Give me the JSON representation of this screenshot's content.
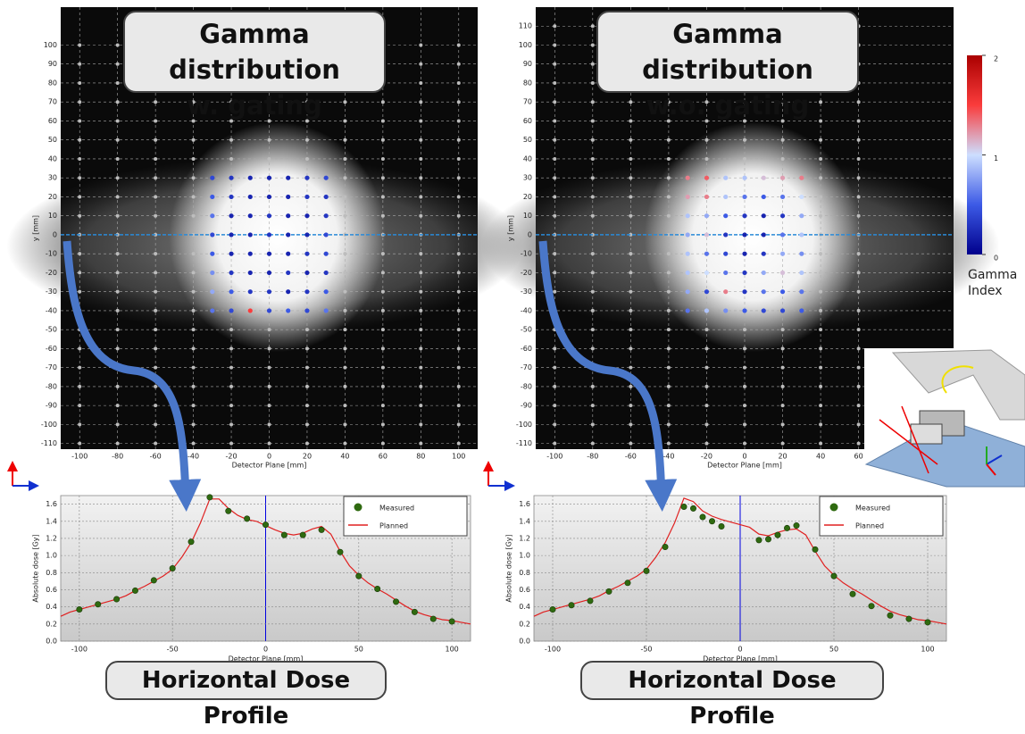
{
  "chart_data": [
    {
      "type": "gamma-map",
      "title": "Gamma distribution",
      "subtitle": "w. gating",
      "x_label": "Detector Plane [mm]",
      "y_label": "y [mm]",
      "xlim": [
        -110,
        110
      ],
      "ylim": [
        -113,
        120
      ],
      "xticks": [
        -100,
        -80,
        -60,
        -40,
        -20,
        0,
        20,
        40,
        60,
        80,
        100
      ],
      "yticks": [
        -110,
        -100,
        -90,
        -80,
        -70,
        -60,
        -50,
        -40,
        -30,
        -20,
        -10,
        0,
        10,
        20,
        30,
        40,
        50,
        60,
        70,
        80,
        90,
        100
      ],
      "x": [
        -30,
        -20,
        -10,
        0,
        10,
        20,
        30
      ],
      "y": [
        30,
        20,
        10,
        0,
        -10,
        -20,
        -30,
        -40
      ],
      "values": [
        [
          0.4,
          0.3,
          0.2,
          0.2,
          0.2,
          0.3,
          0.4
        ],
        [
          0.5,
          0.3,
          0.2,
          0.2,
          0.2,
          0.3,
          0.3
        ],
        [
          0.6,
          0.2,
          0.2,
          0.3,
          0.2,
          0.2,
          0.3
        ],
        [
          0.4,
          0.2,
          0.2,
          0.3,
          0.2,
          0.2,
          0.4
        ],
        [
          0.5,
          0.2,
          0.2,
          0.2,
          0.2,
          0.3,
          0.4
        ],
        [
          0.7,
          0.3,
          0.2,
          0.2,
          0.3,
          0.2,
          0.3
        ],
        [
          0.8,
          0.5,
          0.3,
          0.3,
          0.2,
          0.3,
          0.5
        ],
        [
          0.6,
          0.4,
          1.5,
          0.4,
          0.5,
          0.4,
          0.6
        ]
      ],
      "grid": true
    },
    {
      "type": "gamma-map",
      "title": "Gamma distribution",
      "subtitle": "w.o. gating",
      "x_label": "Detector Plane [mm]",
      "y_label": "y [mm]",
      "xlim": [
        -110,
        110
      ],
      "ylim": [
        -113,
        120
      ],
      "xticks": [
        -100,
        -80,
        -60,
        -40,
        -20,
        0,
        20,
        40,
        60
      ],
      "yticks": [
        -110,
        -100,
        -90,
        -80,
        -70,
        -60,
        -50,
        -40,
        -30,
        -20,
        -10,
        0,
        10,
        20,
        30,
        40,
        50,
        60,
        70,
        80,
        90,
        100,
        110
      ],
      "x": [
        -30,
        -20,
        -10,
        0,
        10,
        20,
        30
      ],
      "y": [
        30,
        20,
        10,
        0,
        -10,
        -20,
        -30,
        -40
      ],
      "values": [
        [
          1.3,
          1.4,
          0.9,
          0.9,
          1.1,
          1.2,
          1.3
        ],
        [
          1.2,
          1.3,
          0.9,
          0.6,
          0.5,
          0.6,
          1.0
        ],
        [
          0.9,
          0.8,
          0.5,
          0.3,
          0.2,
          0.3,
          0.8
        ],
        [
          0.8,
          1.1,
          0.3,
          0.2,
          0.2,
          0.6,
          0.9
        ],
        [
          0.9,
          0.6,
          0.4,
          0.2,
          0.3,
          0.8,
          0.7
        ],
        [
          0.9,
          1.0,
          0.6,
          0.3,
          0.8,
          1.1,
          0.9
        ],
        [
          0.8,
          0.4,
          1.3,
          0.3,
          0.6,
          0.5,
          0.6
        ],
        [
          0.6,
          0.9,
          0.7,
          0.5,
          0.4,
          0.4,
          0.5
        ]
      ],
      "grid": true,
      "colorbar": {
        "label": "Gamma Index",
        "lim": [
          0,
          2
        ],
        "ticks": [
          0,
          1,
          2
        ]
      }
    },
    {
      "type": "line",
      "caption": "Horizontal Dose Profile",
      "x_label": "Detector Plane [mm]",
      "y_label": "Absolute dose [Gy]",
      "xlim": [
        -110,
        110
      ],
      "ylim": [
        0,
        1.7
      ],
      "xticks": [
        -100,
        -50,
        0,
        50,
        100
      ],
      "yticks": [
        {
          "value": 0,
          "label": "0.0"
        },
        0.2,
        0.4,
        0.6,
        0.8,
        {
          "value": 1,
          "label": "1.0"
        },
        1.2,
        1.4,
        1.6
      ],
      "legend": "upper right",
      "grid": true,
      "series": [
        {
          "name": "Measured",
          "color": "#2f6a10",
          "mode": "markers",
          "x": [
            -100,
            -90,
            -80,
            -70,
            -60,
            -50,
            -40,
            -30,
            -20,
            -10,
            0,
            10,
            20,
            30,
            40,
            50,
            60,
            70,
            80,
            90,
            100
          ],
          "values": [
            0.37,
            0.43,
            0.49,
            0.59,
            0.71,
            0.85,
            1.16,
            1.68,
            1.52,
            1.43,
            1.36,
            1.24,
            1.24,
            1.3,
            1.04,
            0.76,
            0.61,
            0.46,
            0.34,
            0.26,
            0.23
          ]
        },
        {
          "name": "Planned",
          "color": "#e02020",
          "mode": "line",
          "x": [
            -110,
            -105,
            -100,
            -95,
            -90,
            -85,
            -80,
            -75,
            -70,
            -65,
            -60,
            -55,
            -50,
            -45,
            -40,
            -35,
            -30,
            -25,
            -20,
            -15,
            -10,
            -5,
            0,
            5,
            10,
            15,
            20,
            25,
            30,
            35,
            40,
            45,
            50,
            55,
            60,
            65,
            70,
            75,
            80,
            85,
            90,
            95,
            100,
            105,
            110
          ],
          "values": [
            0.29,
            0.34,
            0.37,
            0.4,
            0.43,
            0.46,
            0.49,
            0.53,
            0.59,
            0.64,
            0.7,
            0.76,
            0.84,
            0.98,
            1.15,
            1.38,
            1.66,
            1.66,
            1.55,
            1.47,
            1.42,
            1.4,
            1.35,
            1.3,
            1.26,
            1.24,
            1.26,
            1.31,
            1.34,
            1.25,
            1.05,
            0.88,
            0.77,
            0.68,
            0.61,
            0.55,
            0.48,
            0.41,
            0.35,
            0.31,
            0.28,
            0.25,
            0.24,
            0.22,
            0.2
          ]
        }
      ]
    },
    {
      "type": "line",
      "caption": "Horizontal Dose Profile",
      "x_label": "Detector Plane [mm]",
      "y_label": "Absolute dose [Gy]",
      "xlim": [
        -110,
        110
      ],
      "ylim": [
        0,
        1.7
      ],
      "xticks": [
        -100,
        -50,
        0,
        50,
        100
      ],
      "yticks": [
        {
          "value": 0,
          "label": "0.0"
        },
        0.2,
        0.4,
        0.6,
        0.8,
        {
          "value": 1,
          "label": "1.0"
        },
        1.2,
        1.4,
        1.6
      ],
      "legend": "upper right",
      "grid": true,
      "series": [
        {
          "name": "Measured",
          "color": "#2f6a10",
          "mode": "markers",
          "x": [
            -100,
            -90,
            -80,
            -70,
            -60,
            -50,
            -40,
            -30,
            -25,
            -20,
            -15,
            -10,
            10,
            15,
            20,
            25,
            30,
            40,
            50,
            60,
            70,
            80,
            90,
            100
          ],
          "values": [
            0.37,
            0.42,
            0.47,
            0.58,
            0.68,
            0.82,
            1.1,
            1.57,
            1.55,
            1.45,
            1.4,
            1.34,
            1.18,
            1.19,
            1.24,
            1.32,
            1.35,
            1.07,
            0.76,
            0.55,
            0.41,
            0.3,
            0.26,
            0.22
          ]
        },
        {
          "name": "Planned",
          "color": "#e02020",
          "mode": "line",
          "x": [
            -110,
            -105,
            -100,
            -95,
            -90,
            -85,
            -80,
            -75,
            -70,
            -65,
            -60,
            -55,
            -50,
            -45,
            -40,
            -35,
            -30,
            -25,
            -20,
            -15,
            -10,
            -5,
            0,
            5,
            10,
            15,
            20,
            25,
            30,
            35,
            40,
            45,
            50,
            55,
            60,
            65,
            70,
            75,
            80,
            85,
            90,
            95,
            100,
            105,
            110
          ],
          "values": [
            0.29,
            0.34,
            0.37,
            0.4,
            0.43,
            0.46,
            0.49,
            0.53,
            0.59,
            0.64,
            0.7,
            0.76,
            0.84,
            0.98,
            1.15,
            1.38,
            1.67,
            1.63,
            1.52,
            1.46,
            1.42,
            1.39,
            1.36,
            1.33,
            1.25,
            1.23,
            1.27,
            1.3,
            1.31,
            1.24,
            1.05,
            0.88,
            0.77,
            0.68,
            0.61,
            0.55,
            0.48,
            0.41,
            0.35,
            0.31,
            0.28,
            0.25,
            0.24,
            0.22,
            0.2
          ]
        }
      ]
    }
  ]
}
